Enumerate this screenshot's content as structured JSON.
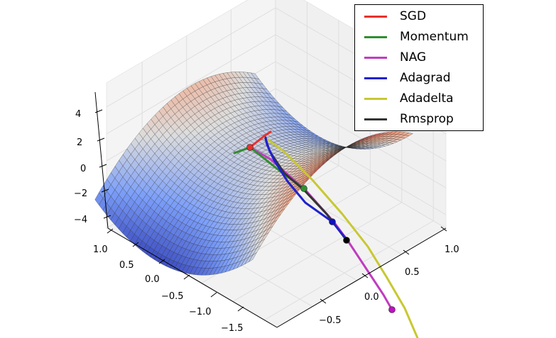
{
  "chart_data": {
    "type": "surface3d",
    "title": "",
    "surface": {
      "function": "z = x^2 - y^2",
      "colormap": "coolwarm",
      "x_range": [
        -1.5,
        1.0
      ],
      "y_range": [
        -1.5,
        1.0
      ],
      "z_range": [
        -4,
        4
      ]
    },
    "axes": {
      "z_ticks": [
        "4",
        "2",
        "0",
        "−2",
        "−4"
      ],
      "z_values": [
        4,
        2,
        0,
        -2,
        -4
      ],
      "left_ticks": [
        "1.0",
        "0.5",
        "0.0",
        "−0.5",
        "−1.0",
        "−1.5"
      ],
      "left_values": [
        1.0,
        0.5,
        0.0,
        -0.5,
        -1.0,
        -1.5
      ],
      "right_ticks": [
        "1.0",
        "0.5",
        "0.0",
        "−0.5"
      ],
      "right_values": [
        1.0,
        0.5,
        0.0,
        -0.5
      ]
    },
    "series": [
      {
        "name": "SGD",
        "color": "#e8312c",
        "end_marker": true
      },
      {
        "name": "Momentum",
        "color": "#2f8f2f",
        "end_marker": true
      },
      {
        "name": "NAG",
        "color": "#c03cc0",
        "end_marker": true
      },
      {
        "name": "Adagrad",
        "color": "#2020d0",
        "end_marker": true
      },
      {
        "name": "Adadelta",
        "color": "#c8c832",
        "end_marker": false
      },
      {
        "name": "Rmsprop",
        "color": "#333333",
        "end_marker": true
      }
    ],
    "legend_position": "top-right"
  }
}
